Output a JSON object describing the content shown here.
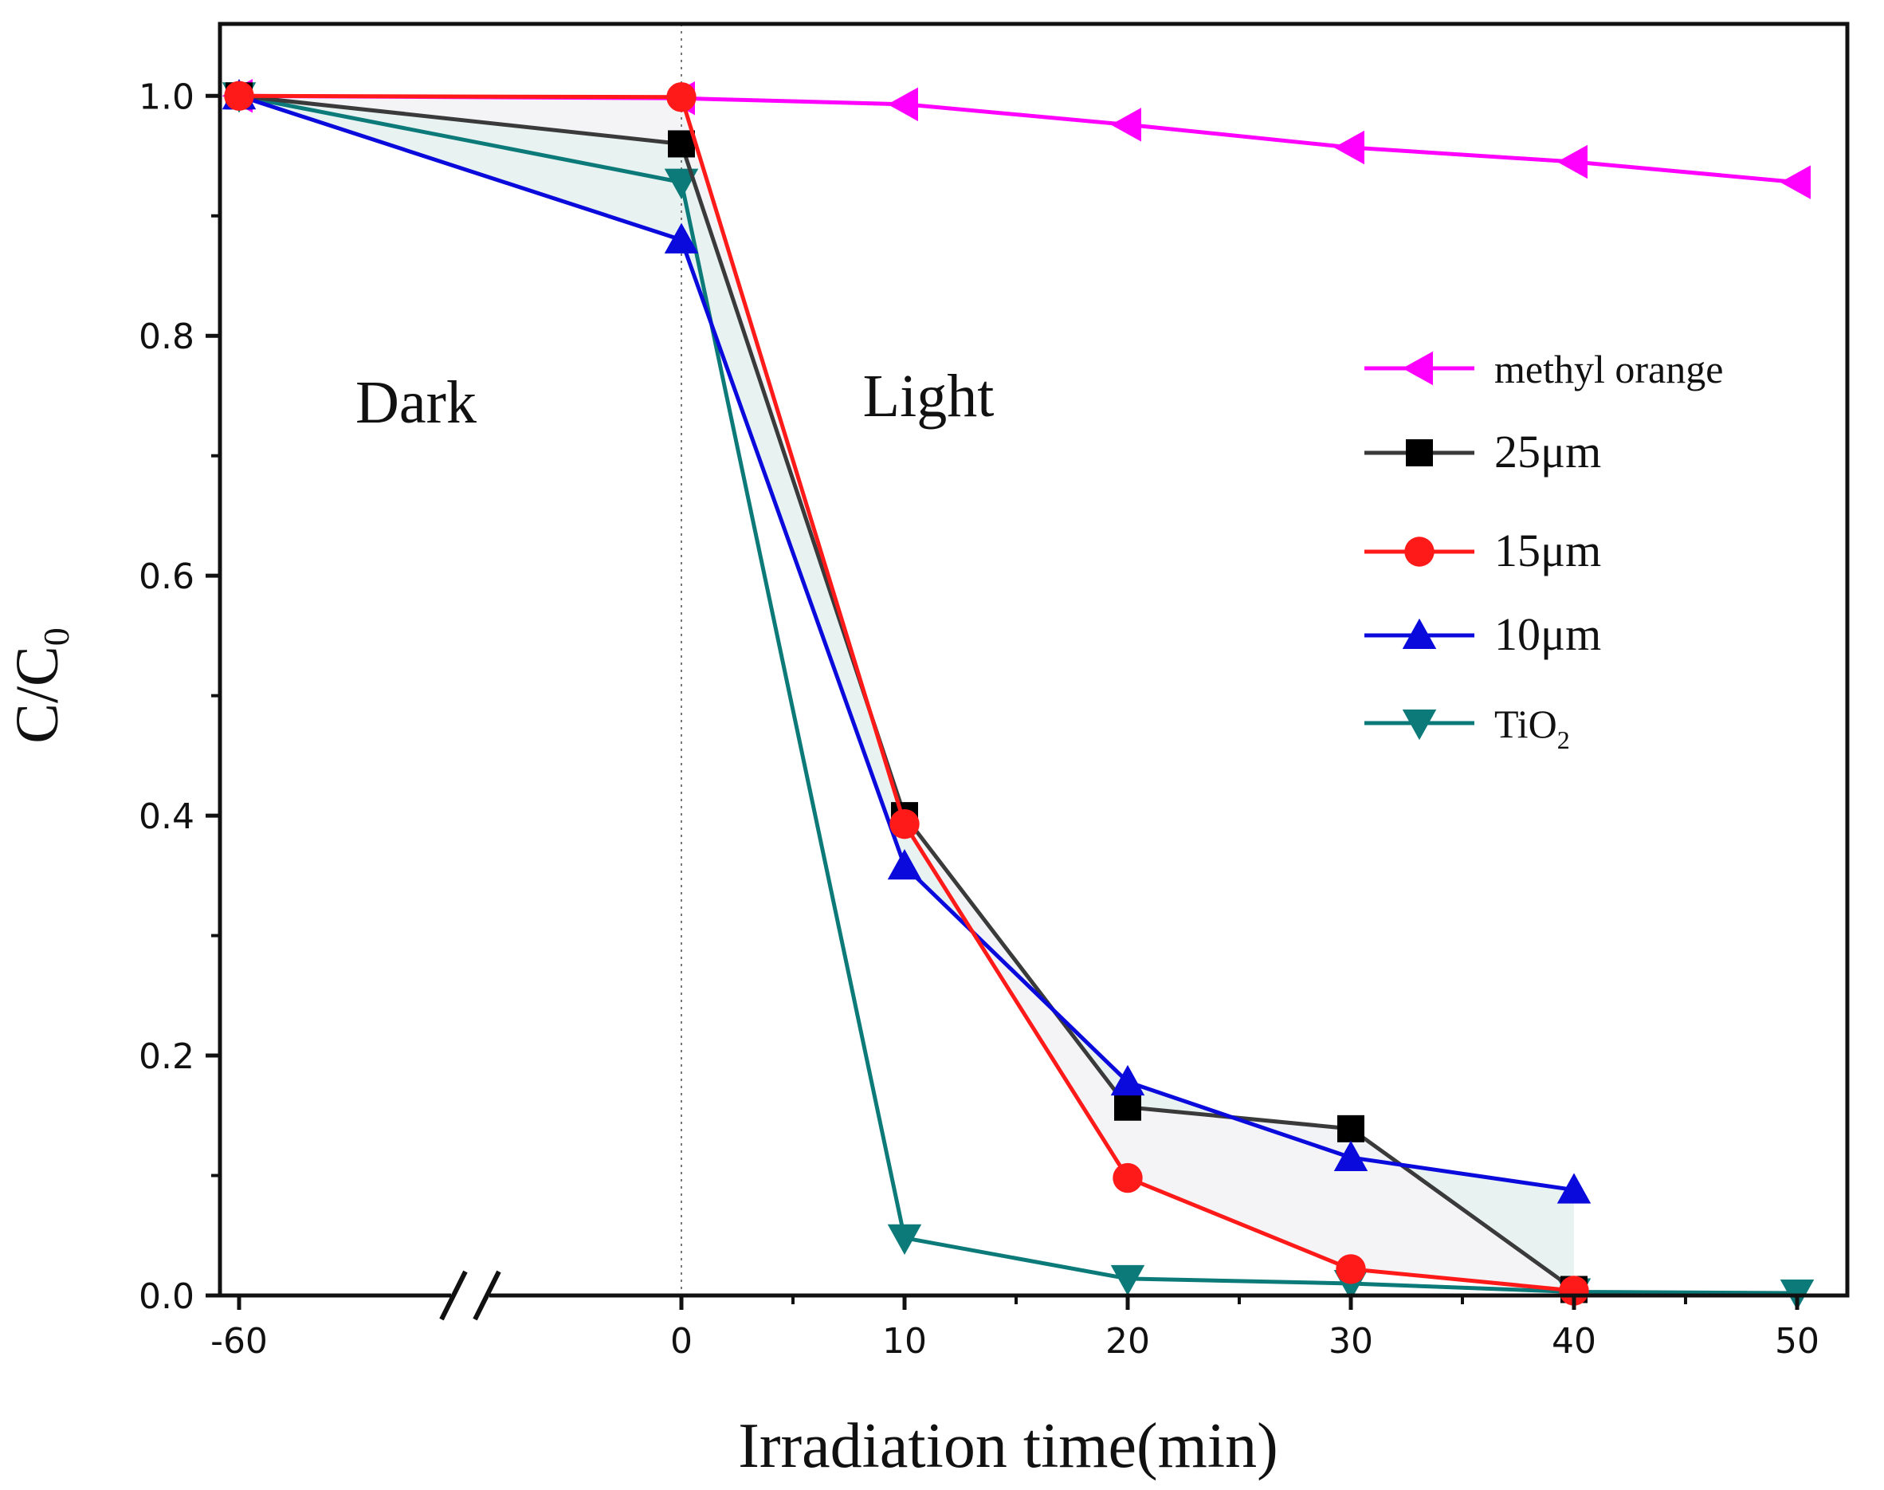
{
  "chart_data": {
    "type": "line",
    "xlabel": "Irradiation time(min)",
    "ylabel_main": "C/C",
    "ylabel_sub": "0",
    "x_ticks": [
      -60,
      0,
      10,
      20,
      30,
      40,
      50
    ],
    "x_tick_labels": [
      "-60",
      "0",
      "10",
      "20",
      "30",
      "40",
      "50"
    ],
    "y_ticks": [
      0.0,
      0.2,
      0.4,
      0.6,
      0.8,
      1.0
    ],
    "y_tick_labels": [
      "0.0",
      "0.2",
      "0.4",
      "0.6",
      "0.8",
      "1.0"
    ],
    "xlim": [
      -60,
      51.5
    ],
    "ylim": [
      0.0,
      1.06
    ],
    "axis_break": "between -60 and 0",
    "annotations": {
      "dark": "Dark",
      "light": "Light"
    },
    "legend_position": "right",
    "series": [
      {
        "name": "methyl orange",
        "legend_main": "methyl orange",
        "legend_sub": "",
        "color": "#ff00ff",
        "marker": "triangle-left",
        "x": [
          -60,
          0,
          10,
          20,
          30,
          40,
          50
        ],
        "y": [
          1.0,
          0.998,
          0.993,
          0.976,
          0.957,
          0.945,
          0.928
        ]
      },
      {
        "name": "25μm",
        "legend_main": "25μm",
        "legend_sub": "",
        "color": "#000000",
        "line_color": "#3a3a3a",
        "marker": "square",
        "x": [
          -60,
          0,
          10,
          20,
          30,
          40
        ],
        "y": [
          1.0,
          0.96,
          0.4,
          0.157,
          0.139,
          0.005
        ]
      },
      {
        "name": "15μm",
        "legend_main": "15μm",
        "legend_sub": "",
        "color": "#ff1a1a",
        "marker": "circle",
        "x": [
          -60,
          0,
          10,
          20,
          30,
          40
        ],
        "y": [
          1.0,
          0.999,
          0.393,
          0.098,
          0.022,
          0.004
        ]
      },
      {
        "name": "10μm",
        "legend_main": "10μm",
        "legend_sub": "",
        "color": "#0a0adc",
        "marker": "triangle-up",
        "x": [
          -60,
          0,
          10,
          20,
          30,
          40
        ],
        "y": [
          1.0,
          0.88,
          0.358,
          0.178,
          0.115,
          0.088
        ]
      },
      {
        "name": "TiO2",
        "legend_main": "TiO",
        "legend_sub": "2",
        "color": "#0d7a7a",
        "marker": "triangle-down",
        "x": [
          -60,
          0,
          10,
          20,
          30,
          40,
          50
        ],
        "y": [
          1.0,
          0.928,
          0.048,
          0.014,
          0.01,
          0.003,
          0.002
        ]
      }
    ]
  }
}
